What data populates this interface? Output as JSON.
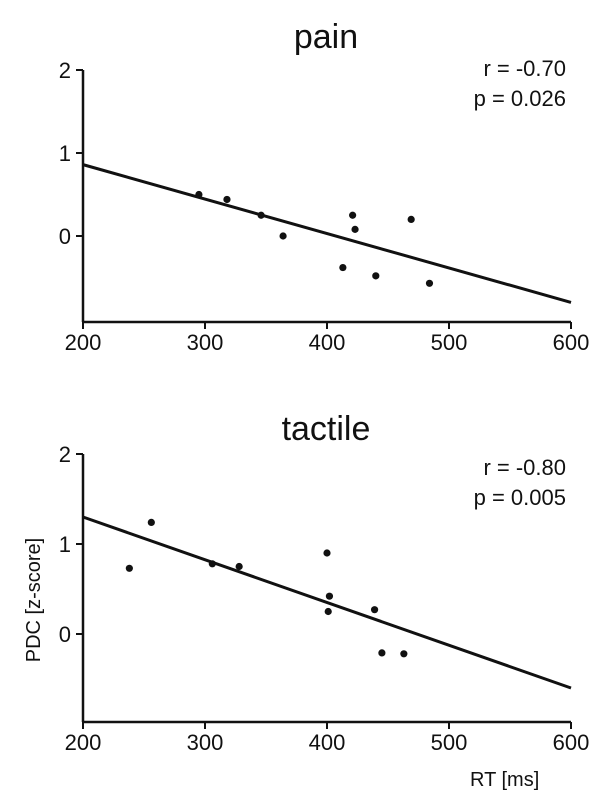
{
  "chart_data": [
    {
      "type": "scatter",
      "title": "pain",
      "xlabel": "",
      "ylabel": "",
      "xlim": [
        200,
        600
      ],
      "ylim": [
        -1,
        2
      ],
      "xticks": [
        "200",
        "300",
        "400",
        "500",
        "600"
      ],
      "yticks": [
        "0",
        "1",
        "2"
      ],
      "stats": {
        "r": "r = -0.70",
        "p": "p = 0.026"
      },
      "points": [
        {
          "x": 295,
          "y": 0.5
        },
        {
          "x": 318,
          "y": 0.44
        },
        {
          "x": 346,
          "y": 0.25
        },
        {
          "x": 364,
          "y": 0.0
        },
        {
          "x": 413,
          "y": -0.38
        },
        {
          "x": 421,
          "y": 0.25
        },
        {
          "x": 423,
          "y": 0.08
        },
        {
          "x": 440,
          "y": -0.48
        },
        {
          "x": 469,
          "y": 0.2
        },
        {
          "x": 484,
          "y": -0.57
        }
      ],
      "fit": {
        "x": [
          200,
          600
        ],
        "y": [
          0.86,
          -0.8
        ]
      }
    },
    {
      "type": "scatter",
      "title": "tactile",
      "xlabel": "RT [ms]",
      "ylabel": "PDC [z-score]",
      "xlim": [
        200,
        600
      ],
      "ylim": [
        -1,
        2
      ],
      "xticks": [
        "200",
        "300",
        "400",
        "500",
        "600"
      ],
      "yticks": [
        "0",
        "1",
        "2"
      ],
      "stats": {
        "r": "r = -0.80",
        "p": "p = 0.005"
      },
      "points": [
        {
          "x": 238,
          "y": 0.73
        },
        {
          "x": 256,
          "y": 1.24
        },
        {
          "x": 306,
          "y": 0.78
        },
        {
          "x": 328,
          "y": 0.75
        },
        {
          "x": 400,
          "y": 0.9
        },
        {
          "x": 401,
          "y": 0.25
        },
        {
          "x": 402,
          "y": 0.42
        },
        {
          "x": 439,
          "y": 0.27
        },
        {
          "x": 445,
          "y": -0.21
        },
        {
          "x": 463,
          "y": -0.22
        }
      ],
      "fit": {
        "x": [
          200,
          600
        ],
        "y": [
          1.3,
          -0.6
        ]
      }
    }
  ]
}
